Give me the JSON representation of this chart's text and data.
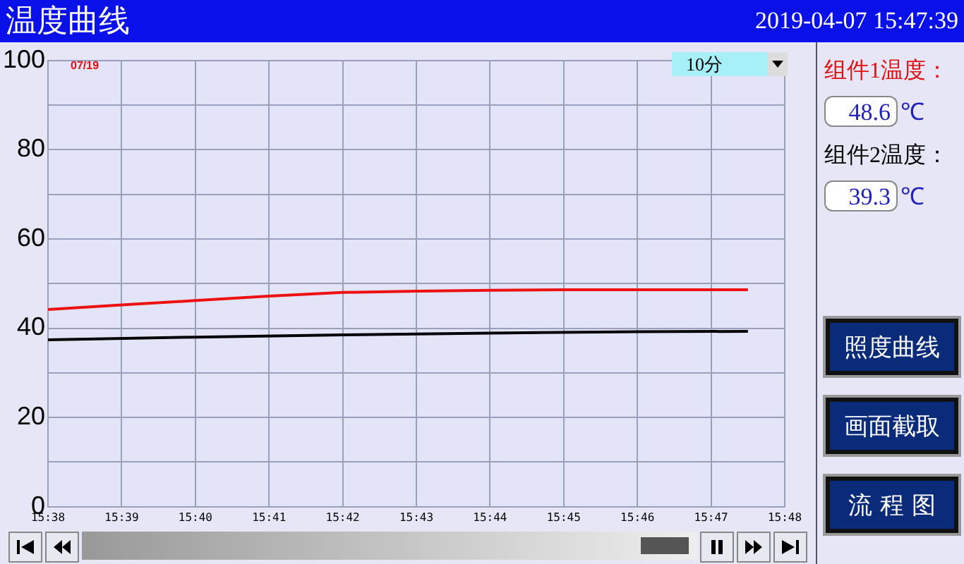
{
  "chart_data": {
    "type": "line",
    "title": "温度曲线",
    "subtitle": "2019-04-07 15:47:39",
    "annotations": [
      "07/19",
      "10分",
      "组件1温度：",
      "48.6",
      "℃",
      "组件2温度：",
      "39.3",
      "℃",
      "照度曲线",
      "画面截取",
      "流 程 图"
    ],
    "series": [
      {
        "color": "#ee1111",
        "x": [
          "2019-04-07T15:38",
          "2019-04-07T15:39",
          "2019-04-07T15:40",
          "2019-04-07T15:41",
          "2019-04-07T15:42",
          "2019-04-07T15:43",
          "2019-04-07T15:44",
          "2019-04-07T15:45",
          "2019-04-07T15:46",
          "2019-04-07T15:47",
          "2019-04-07T15:47:30"
        ],
        "values": [
          44.2,
          45.2,
          46.2,
          47.2,
          48.0,
          48.3,
          48.5,
          48.6,
          48.6,
          48.6,
          48.6
        ]
      },
      {
        "color": "#000000",
        "x": [
          "2019-04-07T15:38",
          "2019-04-07T15:40",
          "2019-04-07T15:42",
          "2019-04-07T15:44",
          "2019-04-07T15:46",
          "2019-04-07T15:47:30"
        ],
        "values": [
          37.4,
          38.0,
          38.5,
          38.9,
          39.2,
          39.3
        ]
      }
    ],
    "xlim": [
      "2019-04-07T15:38",
      "2019-04-07T15:48"
    ],
    "xticks": [
      {
        "value": "2019-04-07T15:38",
        "label": "15:38"
      },
      {
        "value": "2019-04-07T15:39",
        "label": "15:39"
      },
      {
        "value": "2019-04-07T15:40",
        "label": "15:40"
      },
      {
        "value": "2019-04-07T15:41",
        "label": "15:41"
      },
      {
        "value": "2019-04-07T15:42",
        "label": "15:42"
      },
      {
        "value": "2019-04-07T15:43",
        "label": "15:43"
      },
      {
        "value": "2019-04-07T15:44",
        "label": "15:44"
      },
      {
        "value": "2019-04-07T15:45",
        "label": "15:45"
      },
      {
        "value": "2019-04-07T15:46",
        "label": "15:46"
      },
      {
        "value": "2019-04-07T15:47",
        "label": "15:47"
      },
      {
        "value": "2019-04-07T15:48",
        "label": "15:48"
      }
    ],
    "ylim": [
      0,
      100
    ],
    "yticks": [
      0,
      {
        "value": 10,
        "label": null
      },
      20,
      {
        "value": 30,
        "label": null
      },
      40,
      {
        "value": 50,
        "label": null
      },
      60,
      {
        "value": 70,
        "label": null
      },
      80,
      {
        "value": 90,
        "label": null
      },
      100
    ],
    "grid": true,
    "legend": false,
    "marker": "none",
    "line_style": "solid"
  }
}
